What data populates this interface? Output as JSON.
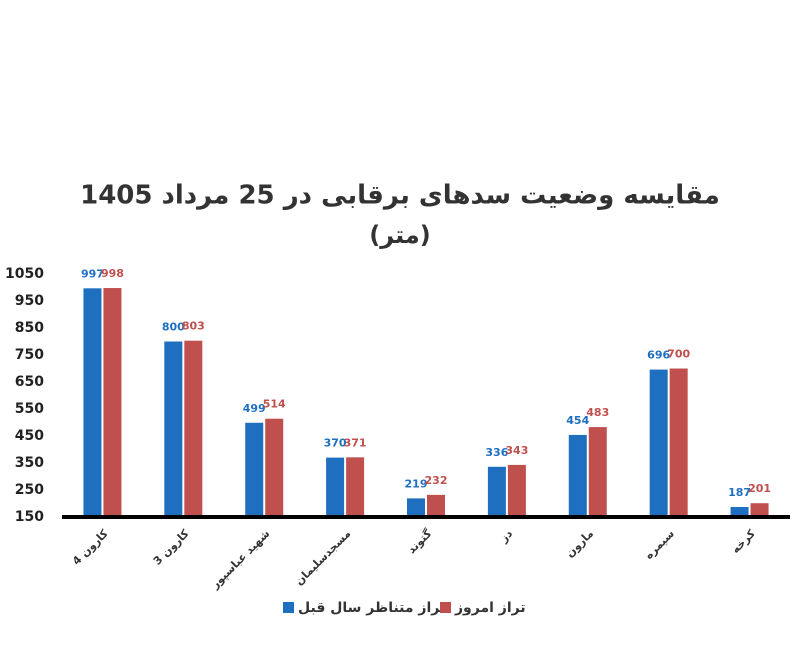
{
  "chart_data": {
    "type": "bar",
    "title": "مقایسه وضعیت سدهای برقابی در 25 مرداد 1405",
    "subtitle": "(متر)",
    "categories": [
      "کارون 4",
      "کارون 3",
      "شهید عباسپور",
      "مسجدسلیمان",
      "گتوند",
      "دز",
      "مارون",
      "سیمره",
      "کرخه"
    ],
    "series": [
      {
        "name": "تراز متناظر سال قبل",
        "color": "#1f6fc1",
        "values": [
          997,
          800,
          499,
          370,
          219,
          336,
          454,
          696,
          187
        ]
      },
      {
        "name": "تراز امروز",
        "color": "#c0504d",
        "values": [
          998,
          803,
          514,
          371,
          232,
          343,
          483,
          700,
          201
        ]
      }
    ],
    "ylim": [
      150,
      1050
    ],
    "yticks": [
      150,
      250,
      350,
      450,
      550,
      650,
      750,
      850,
      950,
      1050
    ],
    "grid": false
  }
}
